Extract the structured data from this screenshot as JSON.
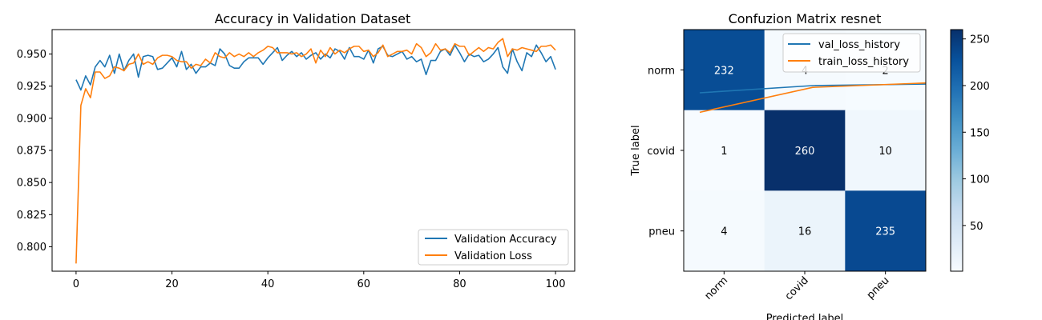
{
  "colors": {
    "val_accuracy": "#1f77b4",
    "val_loss": "#ff7f0e",
    "cmap_low": "#f7fbff",
    "cmap_high": "#08306b"
  },
  "chart_data": [
    {
      "type": "line",
      "title": "Accuracy in Validation Dataset",
      "xlabel": "",
      "ylabel": "",
      "xlim": [
        -5,
        104
      ],
      "ylim": [
        0.781,
        0.969
      ],
      "xticks": [
        0,
        20,
        40,
        60,
        80,
        100
      ],
      "yticks": [
        0.8,
        0.825,
        0.85,
        0.875,
        0.9,
        0.925,
        0.95
      ],
      "ytick_labels": [
        "0.800",
        "0.825",
        "0.850",
        "0.875",
        "0.900",
        "0.925",
        "0.950"
      ],
      "legend": "lower-right",
      "series": [
        {
          "name": "Validation Accuracy",
          "color": "#1f77b4",
          "y": [
            0.93,
            0.922,
            0.933,
            0.926,
            0.94,
            0.945,
            0.94,
            0.949,
            0.935,
            0.95,
            0.937,
            0.945,
            0.95,
            0.932,
            0.948,
            0.949,
            0.948,
            0.938,
            0.939,
            0.943,
            0.947,
            0.94,
            0.952,
            0.938,
            0.942,
            0.935,
            0.94,
            0.94,
            0.943,
            0.941,
            0.954,
            0.95,
            0.941,
            0.939,
            0.939,
            0.944,
            0.947,
            0.947,
            0.947,
            0.942,
            0.947,
            0.951,
            0.955,
            0.945,
            0.949,
            0.952,
            0.948,
            0.951,
            0.946,
            0.949,
            0.951,
            0.946,
            0.95,
            0.947,
            0.954,
            0.952,
            0.946,
            0.955,
            0.948,
            0.948,
            0.946,
            0.953,
            0.943,
            0.954,
            0.956,
            0.949,
            0.948,
            0.95,
            0.952,
            0.946,
            0.948,
            0.944,
            0.946,
            0.934,
            0.945,
            0.945,
            0.952,
            0.954,
            0.949,
            0.957,
            0.951,
            0.944,
            0.95,
            0.948,
            0.949,
            0.944,
            0.946,
            0.95,
            0.955,
            0.94,
            0.935,
            0.954,
            0.944,
            0.937,
            0.951,
            0.948,
            0.957,
            0.951,
            0.944,
            0.948,
            0.938
          ]
        },
        {
          "name": "Validation Loss",
          "color": "#ff7f0e",
          "y": [
            0.787,
            0.91,
            0.923,
            0.916,
            0.936,
            0.936,
            0.931,
            0.933,
            0.94,
            0.939,
            0.937,
            0.942,
            0.943,
            0.95,
            0.942,
            0.944,
            0.942,
            0.947,
            0.949,
            0.949,
            0.948,
            0.945,
            0.944,
            0.944,
            0.939,
            0.942,
            0.941,
            0.946,
            0.943,
            0.951,
            0.948,
            0.947,
            0.951,
            0.948,
            0.95,
            0.948,
            0.951,
            0.948,
            0.951,
            0.953,
            0.956,
            0.955,
            0.951,
            0.951,
            0.951,
            0.95,
            0.951,
            0.948,
            0.95,
            0.954,
            0.943,
            0.953,
            0.948,
            0.955,
            0.95,
            0.953,
            0.951,
            0.954,
            0.956,
            0.956,
            0.952,
            0.953,
            0.948,
            0.951,
            0.957,
            0.948,
            0.95,
            0.952,
            0.952,
            0.953,
            0.95,
            0.958,
            0.955,
            0.948,
            0.951,
            0.958,
            0.953,
            0.954,
            0.951,
            0.958,
            0.956,
            0.956,
            0.949,
            0.952,
            0.955,
            0.952,
            0.955,
            0.954,
            0.959,
            0.962,
            0.948,
            0.954,
            0.953,
            0.955,
            0.954,
            0.953,
            0.952,
            0.956,
            0.956,
            0.957,
            0.953
          ]
        }
      ]
    },
    {
      "type": "heatmap",
      "title": "Confuzion Matrix resnet",
      "xlabel": "Predicted label",
      "ylabel": "True label",
      "x_categories": [
        "norm",
        "covid",
        "pneu"
      ],
      "y_categories": [
        "norm",
        "covid",
        "pneu"
      ],
      "values": [
        [
          232,
          4,
          2
        ],
        [
          1,
          260,
          10
        ],
        [
          4,
          16,
          235
        ]
      ],
      "cell_labels": [
        [
          "232",
          "4",
          "2"
        ],
        [
          "1",
          "260",
          "10"
        ],
        [
          "4",
          "16",
          "235"
        ]
      ],
      "colorbar": {
        "vmin": 1,
        "vmax": 260,
        "ticks": [
          50,
          100,
          150,
          200,
          250
        ]
      },
      "overlay_series": [
        {
          "name": "val_loss_history",
          "color": "#1f77b4"
        },
        {
          "name": "train_loss_history",
          "color": "#ff7f0e"
        }
      ],
      "legend": "top-right"
    }
  ]
}
